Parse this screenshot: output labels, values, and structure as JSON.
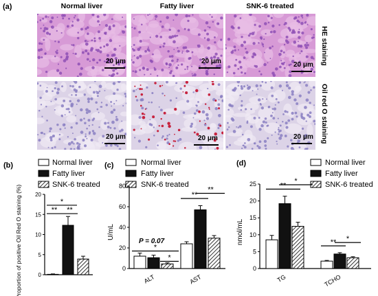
{
  "figure": {
    "panel_a_label": "(a)",
    "column_titles": [
      "Normal liver",
      "Fatty liver",
      "SNK-6 treated"
    ],
    "row_titles": [
      "HE staining",
      "Oil red O staining"
    ],
    "scale_label": "20 μm",
    "colors": {
      "he_base": "#d79ad6",
      "he_nuclei": "#8e4fb5",
      "oro_base": "#dcd3e7",
      "oro_purple": "#8a7fc2",
      "oro_red": "#c7233f"
    }
  },
  "charts": [
    {
      "panel_label": "(b)",
      "legend": [
        "Normal liver",
        "Fatty liver",
        "SNK-6 treated"
      ],
      "ylabel": "Proportion of positive Oil Red O staining (%)",
      "y_ticks": [
        "0",
        "5",
        "10",
        "15",
        "20"
      ],
      "significance": [
        "*",
        "**",
        "**"
      ]
    },
    {
      "panel_label": "(c)",
      "legend": [
        "Normal liver",
        "Fatty liver",
        "SNK-6 treated"
      ],
      "ylabel": "U/mL",
      "y_ticks": [
        "0",
        "20",
        "40",
        "60",
        "80"
      ],
      "x_ticks": [
        "ALT",
        "AST"
      ],
      "annotation": "P = 0.07",
      "significance": [
        "*",
        "**",
        "**"
      ]
    },
    {
      "panel_label": "(d)",
      "legend": [
        "Normal liver",
        "Fatty liver",
        "SNK-6 treated"
      ],
      "ylabel": "nmol/mL",
      "y_ticks": [
        "0",
        "5",
        "10",
        "15",
        "20",
        "25"
      ],
      "x_ticks": [
        "TG",
        "TCHO"
      ],
      "significance": [
        "**",
        "*",
        "**",
        "*"
      ]
    }
  ],
  "chart_data": [
    {
      "type": "bar",
      "categories": [
        ""
      ],
      "series": [
        {
          "name": "Normal liver",
          "values": [
            0.1
          ],
          "errors": [
            0.1
          ]
        },
        {
          "name": "Fatty liver",
          "values": [
            12.3
          ],
          "errors": [
            2.2
          ]
        },
        {
          "name": "SNK-6 treated",
          "values": [
            3.9
          ],
          "errors": [
            0.7
          ]
        }
      ],
      "ylabel": "Proportion of positive Oil Red O staining (%)",
      "ylim": [
        0,
        20
      ]
    },
    {
      "type": "bar",
      "categories": [
        "ALT",
        "AST"
      ],
      "series": [
        {
          "name": "Normal liver",
          "values": [
            12,
            24
          ],
          "errors": [
            3,
            2
          ]
        },
        {
          "name": "Fatty liver",
          "values": [
            10.5,
            57
          ],
          "errors": [
            2.5,
            4
          ]
        },
        {
          "name": "SNK-6 treated",
          "values": [
            4.5,
            29.5
          ],
          "errors": [
            1,
            2.5
          ]
        }
      ],
      "ylabel": "U/mL",
      "ylim": [
        0,
        80
      ]
    },
    {
      "type": "bar",
      "categories": [
        "TG",
        "TCHO"
      ],
      "series": [
        {
          "name": "Normal liver",
          "values": [
            8.5,
            2.2
          ],
          "errors": [
            1.3,
            0.2
          ]
        },
        {
          "name": "Fatty liver",
          "values": [
            19.2,
            4.3
          ],
          "errors": [
            2.2,
            0.4
          ]
        },
        {
          "name": "SNK-6 treated",
          "values": [
            12.5,
            3.2
          ],
          "errors": [
            1.2,
            0.3
          ]
        }
      ],
      "ylabel": "nmol/mL",
      "ylim": [
        0,
        25
      ]
    }
  ]
}
